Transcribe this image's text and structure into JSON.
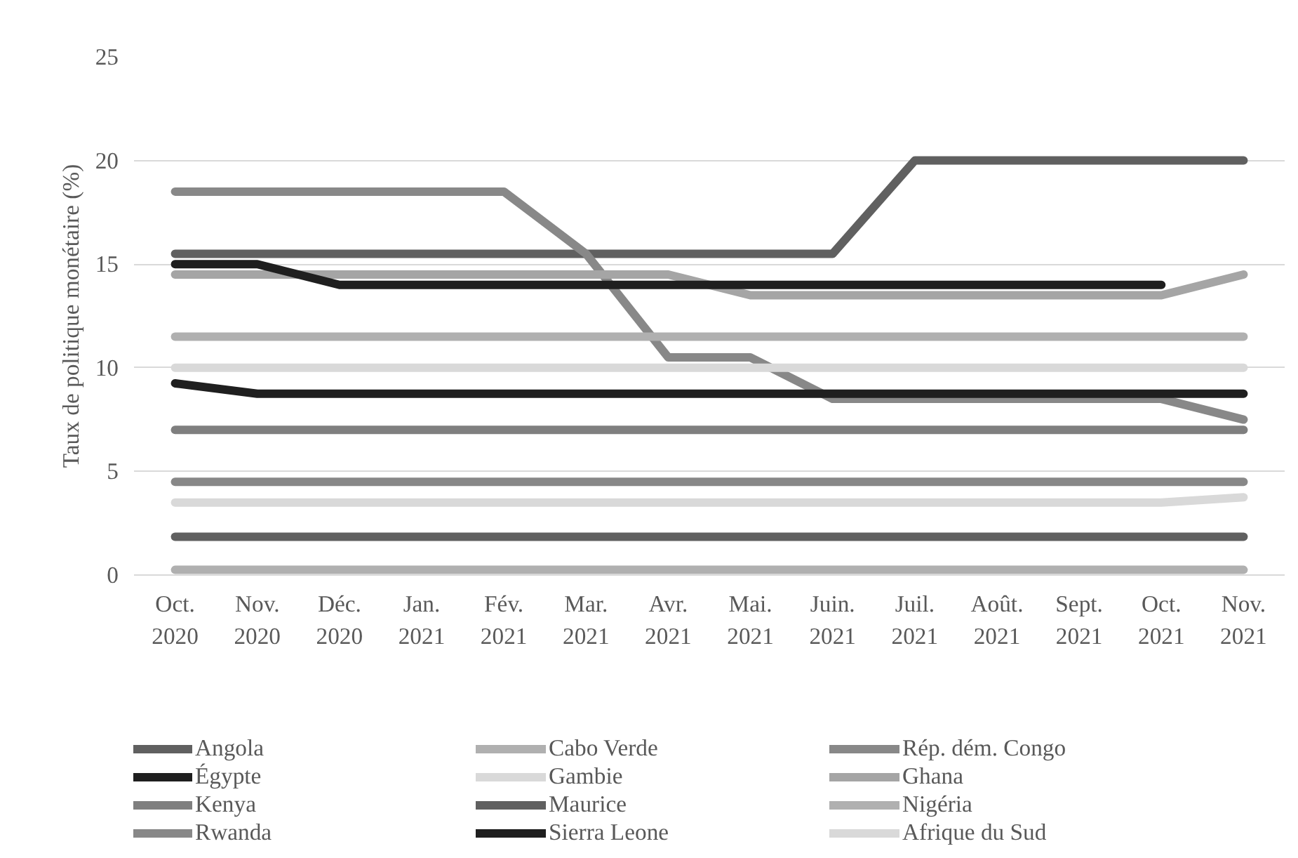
{
  "chart_data": {
    "type": "line",
    "ylabel": "Taux de politique monétaire (%)",
    "categories": [
      "Oct.\n2020",
      "Nov.\n2020",
      "Déc.\n2020",
      "Jan.\n2021",
      "Fév.\n2021",
      "Mar.\n2021",
      "Avr.\n2021",
      "Mai.\n2021",
      "Juin.\n2021",
      "Juil.\n2021",
      "Août.\n2021",
      "Sept.\n2021",
      "Oct.\n2021",
      "Nov.\n2021"
    ],
    "ylim": [
      0,
      25
    ],
    "yticks": [
      0,
      5,
      10,
      15,
      20,
      25
    ],
    "grid": "y",
    "legend": "bottom",
    "line_style": "solid",
    "marker": "none",
    "series": [
      {
        "name": "Angola",
        "color": "#606060",
        "values": [
          15.5,
          15.5,
          15.5,
          15.5,
          15.5,
          15.5,
          15.5,
          15.5,
          15.5,
          20,
          20,
          20,
          20,
          20
        ]
      },
      {
        "name": "Cabo Verde",
        "color": "#b0b0b0",
        "values": [
          0.25,
          0.25,
          0.25,
          0.25,
          0.25,
          0.25,
          0.25,
          0.25,
          0.25,
          0.25,
          0.25,
          0.25,
          0.25,
          0.25
        ]
      },
      {
        "name": "Rép. dém. Congo",
        "color": "#888888",
        "values": [
          18.5,
          18.5,
          18.5,
          18.5,
          18.5,
          15.5,
          10.5,
          10.5,
          8.5,
          8.5,
          8.5,
          8.5,
          8.5,
          7.5
        ]
      },
      {
        "name": "Égypte",
        "color": "#1f1f1f",
        "values": [
          9.25,
          8.75,
          8.75,
          8.75,
          8.75,
          8.75,
          8.75,
          8.75,
          8.75,
          8.75,
          8.75,
          8.75,
          8.75,
          8.75
        ]
      },
      {
        "name": "Gambie",
        "color": "#d9d9d9",
        "values": [
          10,
          10,
          10,
          10,
          10,
          10,
          10,
          10,
          10,
          10,
          10,
          10,
          10,
          10
        ]
      },
      {
        "name": "Ghana",
        "color": "#a5a5a5",
        "values": [
          14.5,
          14.5,
          14.5,
          14.5,
          14.5,
          14.5,
          14.5,
          13.5,
          13.5,
          13.5,
          13.5,
          13.5,
          13.5,
          14.5
        ]
      },
      {
        "name": "Kenya",
        "color": "#7f7f7f",
        "values": [
          7,
          7,
          7,
          7,
          7,
          7,
          7,
          7,
          7,
          7,
          7,
          7,
          7,
          7
        ]
      },
      {
        "name": "Maurice",
        "color": "#606060",
        "values": [
          1.85,
          1.85,
          1.85,
          1.85,
          1.85,
          1.85,
          1.85,
          1.85,
          1.85,
          1.85,
          1.85,
          1.85,
          1.85,
          1.85
        ]
      },
      {
        "name": "Nigéria",
        "color": "#b0b0b0",
        "values": [
          11.5,
          11.5,
          11.5,
          11.5,
          11.5,
          11.5,
          11.5,
          11.5,
          11.5,
          11.5,
          11.5,
          11.5,
          11.5,
          11.5
        ]
      },
      {
        "name": "Rwanda",
        "color": "#888888",
        "values": [
          4.5,
          4.5,
          4.5,
          4.5,
          4.5,
          4.5,
          4.5,
          4.5,
          4.5,
          4.5,
          4.5,
          4.5,
          4.5,
          4.5
        ]
      },
      {
        "name": "Sierra Leone",
        "color": "#1f1f1f",
        "values": [
          15,
          15,
          14,
          14,
          14,
          14,
          14,
          14,
          14,
          14,
          14,
          14,
          14,
          null
        ]
      },
      {
        "name": "Afrique du Sud",
        "color": "#d9d9d9",
        "values": [
          3.5,
          3.5,
          3.5,
          3.5,
          3.5,
          3.5,
          3.5,
          3.5,
          3.5,
          3.5,
          3.5,
          3.5,
          3.5,
          3.75
        ]
      }
    ]
  }
}
